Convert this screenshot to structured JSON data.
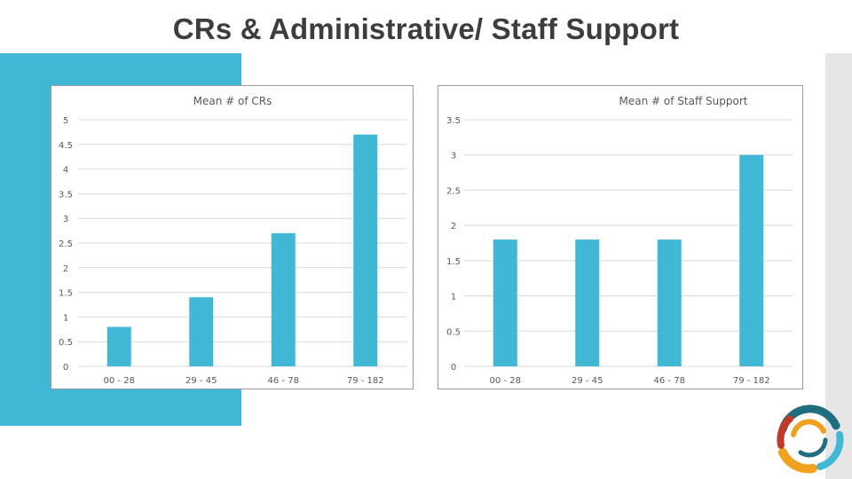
{
  "slide": {
    "title": "CRs & Administrative/ Staff Support"
  },
  "colors": {
    "accent": "#41b8d5",
    "bar": "#41b8d5",
    "gridline": "#d9d9d9",
    "text": "#595959",
    "logo_teal": "#1f6e7e",
    "logo_red": "#c0392b",
    "logo_orange": "#f0a21e",
    "logo_blue": "#41b8d5"
  },
  "chart_data": [
    {
      "type": "bar",
      "title": "Mean # of CRs",
      "categories": [
        "00 - 28",
        "29 - 45",
        "46 - 78",
        "79 - 182"
      ],
      "values": [
        0.8,
        1.4,
        2.7,
        4.7
      ],
      "ylim": [
        0,
        5
      ],
      "yticks": [
        "0",
        "0.5",
        "1",
        "1.5",
        "2",
        "2.5",
        "3",
        "3.5",
        "4",
        "4.5",
        "5"
      ],
      "xlabel": "",
      "ylabel": "",
      "grid": true
    },
    {
      "type": "bar",
      "title": "Mean # of Staff Support",
      "categories": [
        "00 - 28",
        "29 - 45",
        "46 - 78",
        "79 - 182"
      ],
      "values": [
        1.8,
        1.8,
        1.8,
        3.0
      ],
      "ylim": [
        0,
        3.5
      ],
      "yticks": [
        "0",
        "0.5",
        "1",
        "1.5",
        "2",
        "2.5",
        "3",
        "3.5"
      ],
      "xlabel": "",
      "ylabel": "",
      "grid": true
    }
  ],
  "logo": {
    "icon": "ring-logo-icon"
  }
}
